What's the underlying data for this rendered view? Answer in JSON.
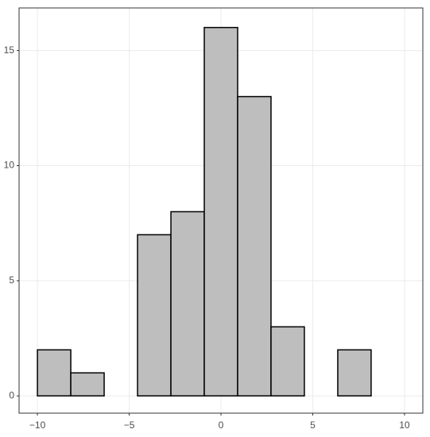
{
  "chart_data": {
    "type": "histogram",
    "bins": [
      -10,
      -8.182,
      -6.364,
      -4.545,
      -2.727,
      -0.909,
      0.909,
      2.727,
      4.545,
      6.364,
      8.182,
      10
    ],
    "counts": [
      2,
      1,
      0,
      7,
      8,
      16,
      13,
      3,
      0,
      2,
      0
    ],
    "color": "#bebebe",
    "xlim": [
      -11,
      11
    ],
    "ylim": [
      -0.75,
      16.85
    ],
    "xticks": [
      {
        "value": -10,
        "label": "−10"
      },
      {
        "value": -5,
        "label": "−5"
      },
      0,
      5,
      10
    ],
    "yticks": [
      0,
      5,
      10,
      15
    ],
    "grid": true
  }
}
